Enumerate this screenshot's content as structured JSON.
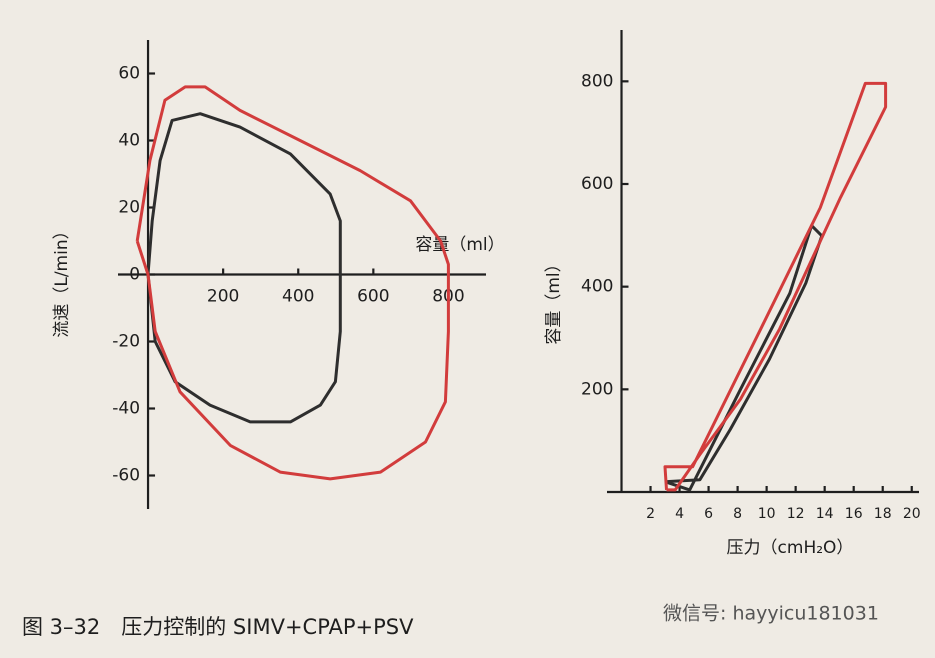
{
  "caption": "图 3–32　压力控制的 SIMV+CPAP+PSV",
  "watermark": "微信号: hayyicu181031",
  "chart_data": [
    {
      "type": "loop",
      "xlabel": "容量（ml）",
      "ylabel": "流速（L/min）",
      "xlim": [
        -80,
        900
      ],
      "ylim": [
        -70,
        70
      ],
      "xticks": [
        200,
        400,
        600,
        800
      ],
      "yticks": [
        -60,
        -40,
        -20,
        0,
        20,
        40,
        60
      ],
      "series": [
        {
          "color": "#2e2e2e",
          "x": [
            0,
            11,
            32,
            64,
            139,
            245,
            379,
            485,
            512,
            512,
            512,
            499,
            459,
            379,
            272,
            165,
            72,
            19,
            0
          ],
          "values": [
            0,
            16,
            34,
            46,
            48,
            44,
            36,
            24,
            16,
            0,
            -17,
            -32,
            -39,
            -44,
            -44,
            -39,
            -32,
            -20,
            0
          ]
        },
        {
          "color": "#d23c3c",
          "x": [
            -29,
            5,
            45,
            99,
            152,
            245,
            405,
            565,
            699,
            779,
            800,
            800,
            800,
            792,
            739,
            619,
            485,
            352,
            219,
            85,
            19,
            0,
            -29
          ],
          "values": [
            10,
            34,
            52,
            56,
            56,
            49,
            40,
            31,
            22,
            10,
            3,
            0,
            -17,
            -38,
            -50,
            -59,
            -61,
            -59,
            -51,
            -35,
            -17,
            0,
            10
          ]
        }
      ]
    },
    {
      "type": "loop",
      "xlabel": "压力（cmH₂O）",
      "ylabel": "容量（ml）",
      "xlim": [
        -1,
        20.5
      ],
      "ylim": [
        0,
        900
      ],
      "xticks": [
        2,
        4,
        6,
        8,
        10,
        12,
        14,
        16,
        18,
        20
      ],
      "yticks": [
        200,
        400,
        600,
        800
      ],
      "series": [
        {
          "color": "#2e2e2e",
          "x": [
            3.0,
            4.7,
            8.2,
            11.6,
            13.1,
            13.8,
            12.7,
            10.2,
            7.5,
            5.4,
            3.0
          ],
          "values": [
            20,
            4,
            200,
            387,
            519,
            499,
            407,
            259,
            122,
            24,
            20
          ]
        },
        {
          "color": "#d23c3c",
          "x": [
            3.1,
            3.0,
            4.9,
            9.6,
            13.7,
            16.8,
            18.2,
            18.2,
            15.1,
            10.9,
            8.2,
            5.4,
            3.7,
            3.1
          ],
          "values": [
            4,
            49,
            49,
            318,
            554,
            796,
            796,
            750,
            574,
            318,
            181,
            73,
            4,
            4
          ]
        }
      ]
    }
  ]
}
